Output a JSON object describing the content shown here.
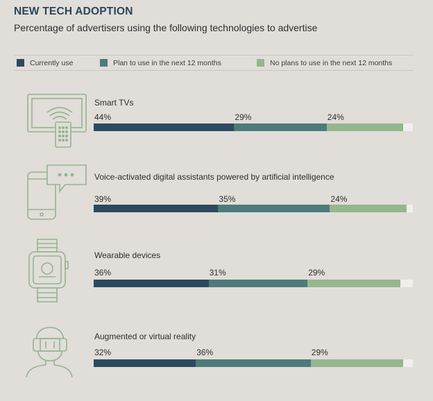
{
  "title": "NEW TECH ADOPTION",
  "subtitle": "Percentage of advertisers using the following technologies to advertise",
  "colors": {
    "currently": "#2c4a5d",
    "plan": "#4e7a7a",
    "none": "#94b78e",
    "icon": "#95b38f"
  },
  "chart_data": {
    "type": "bar",
    "stacked": true,
    "orientation": "horizontal",
    "unit": "%",
    "categories": [
      "Smart TVs",
      "Voice-activated digital assistants powered by artificial intelligence",
      "Wearable devices",
      "Augmented or virtual reality"
    ],
    "series": [
      {
        "name": "Currently use",
        "values": [
          44,
          39,
          36,
          32
        ]
      },
      {
        "name": "Plan to use in the next 12 months",
        "values": [
          29,
          35,
          31,
          36
        ]
      },
      {
        "name": "No plans to use in the next 12 months",
        "values": [
          24,
          24,
          29,
          29
        ]
      }
    ],
    "xlim": [
      0,
      100
    ],
    "legend": "top",
    "grid": false
  },
  "icons": [
    "tv-remote-icon",
    "phone-chat-icon",
    "smartwatch-icon",
    "vr-headset-icon"
  ]
}
